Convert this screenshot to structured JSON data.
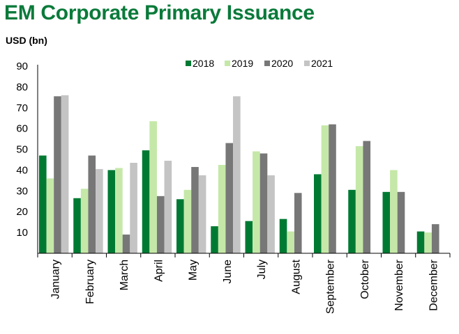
{
  "chart_data": {
    "type": "bar",
    "title": "EM Corporate Primary Issuance",
    "ylabel": "USD (bn)",
    "xlabel": "",
    "categories": [
      "January",
      "February",
      "March",
      "April",
      "May",
      "June",
      "July",
      "August",
      "September",
      "October",
      "November",
      "December"
    ],
    "series": [
      {
        "name": "2018",
        "color": "#007a33",
        "values": [
          47,
          26.5,
          40,
          49.5,
          26,
          13,
          15.5,
          16.5,
          38,
          30.5,
          29.5,
          10.5
        ]
      },
      {
        "name": "2019",
        "color": "#c5e8a8",
        "values": [
          36,
          31,
          41,
          63.5,
          30.5,
          42.5,
          49,
          10.5,
          61.5,
          51.5,
          40,
          10
        ]
      },
      {
        "name": "2020",
        "color": "#777777",
        "values": [
          75.5,
          47,
          9,
          27.5,
          41.5,
          53,
          48,
          29,
          62,
          54,
          29.5,
          14
        ]
      },
      {
        "name": "2021",
        "color": "#c4c4c4",
        "values": [
          76,
          40.5,
          43.5,
          44.5,
          37.5,
          75.5,
          37.5,
          null,
          null,
          null,
          null,
          null
        ]
      }
    ],
    "ylim": [
      0,
      90
    ],
    "yticks": [
      10,
      20,
      30,
      40,
      50,
      60,
      70,
      80,
      90
    ],
    "grid": false,
    "legend_position": "top-right"
  }
}
